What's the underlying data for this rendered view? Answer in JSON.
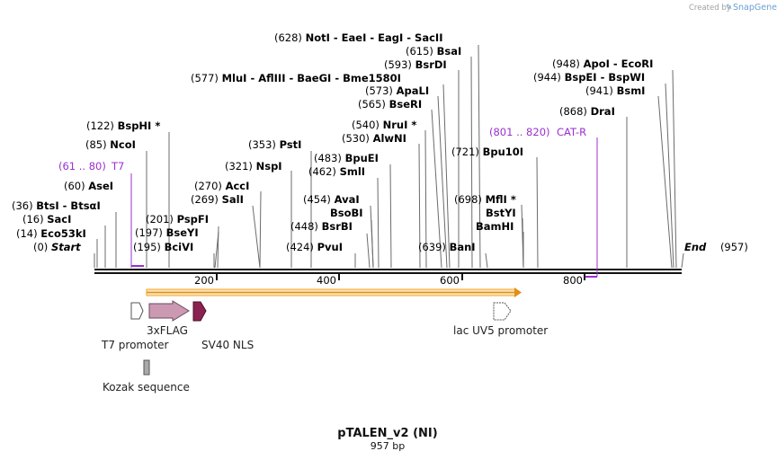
{
  "credit": {
    "prefix": "Created by",
    "brand": "SnapGene"
  },
  "plasmid": {
    "name": "pTALEN_v2 (NI)",
    "length_label": "957 bp",
    "length": 957
  },
  "ends": {
    "start_label": "Start",
    "start_pos": "(0)",
    "end_label": "End",
    "end_pos": "(957)"
  },
  "axis_ticks": [
    "200",
    "400",
    "600",
    "800"
  ],
  "sites": [
    {
      "pos": "(0)",
      "name": "Start"
    },
    {
      "pos": "(14)",
      "name": "Eco53kI"
    },
    {
      "pos": "(16)",
      "name": "SacI"
    },
    {
      "pos": "(36)",
      "name": "BtsI  - BtsαI"
    },
    {
      "pos": "(60)",
      "name": "AseI"
    },
    {
      "pos": "(85)",
      "name": "NcoI"
    },
    {
      "pos": "(122)",
      "name": "BspHI *"
    },
    {
      "pos": "(195)",
      "name": "BciVI"
    },
    {
      "pos": "(197)",
      "name": "BseYI"
    },
    {
      "pos": "(201)",
      "name": "PspFI"
    },
    {
      "pos": "(269)",
      "name": "SalI"
    },
    {
      "pos": "(270)",
      "name": "AccI"
    },
    {
      "pos": "(321)",
      "name": "NspI"
    },
    {
      "pos": "(353)",
      "name": "PstI"
    },
    {
      "pos": "(424)",
      "name": "PvuI"
    },
    {
      "pos": "(448)",
      "name": "BsrBI"
    },
    {
      "pos": "(454)",
      "name": "BsoBI"
    },
    {
      "pos": "(454)",
      "name": "AvaI"
    },
    {
      "pos": "(462)",
      "name": "SmlI"
    },
    {
      "pos": "(483)",
      "name": "BpuEI"
    },
    {
      "pos": "(530)",
      "name": "AlwNI"
    },
    {
      "pos": "(540)",
      "name": "NruI *"
    },
    {
      "pos": "(565)",
      "name": "BseRI"
    },
    {
      "pos": "(573)",
      "name": "ApaLI"
    },
    {
      "pos": "(577)",
      "name": "MluI  - AflIII  - BaeGI  - Bme1580I"
    },
    {
      "pos": "(593)",
      "name": "BsrDI"
    },
    {
      "pos": "(615)",
      "name": "BsaI"
    },
    {
      "pos": "(628)",
      "name": "NotI  - EaeI  - EagI  - SacII"
    },
    {
      "pos": "(639)",
      "name": "BanI"
    },
    {
      "pos": "(698)",
      "name": "BamHI"
    },
    {
      "pos": "(698)",
      "name": "BstYI"
    },
    {
      "pos": "(698)",
      "name": "MflI *"
    },
    {
      "pos": "(721)",
      "name": "Bpu10I"
    },
    {
      "pos": "(868)",
      "name": "DraI"
    },
    {
      "pos": "(941)",
      "name": "BsmI"
    },
    {
      "pos": "(944)",
      "name": "BspEI  - BspWI"
    },
    {
      "pos": "(948)",
      "name": "ApoI  - EcoRI"
    },
    {
      "pos": "(957)",
      "name": "End"
    }
  ],
  "primers": [
    {
      "range": "(61 .. 80)",
      "name": "T7"
    },
    {
      "range": "(801 .. 820)",
      "name": "CAT-R"
    }
  ],
  "features": [
    {
      "name": "T7 promoter",
      "color": "#ffffff"
    },
    {
      "name": "3xFLAG",
      "color": "#cc99b2"
    },
    {
      "name": "SV40 NLS",
      "color": "#8b2252"
    },
    {
      "name": "lac UV5 promoter",
      "color": "#ffffff"
    },
    {
      "name": "Kozak sequence",
      "color": "#a9a9a9"
    }
  ],
  "colors": {
    "primer": "#9b30d0",
    "orf": "#f5a623",
    "backbone": "#111111"
  }
}
